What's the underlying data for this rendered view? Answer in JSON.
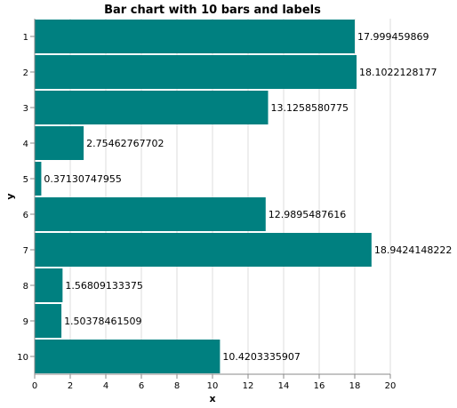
{
  "chart_data": {
    "type": "bar",
    "orientation": "horizontal",
    "title": "Bar chart with 10 bars and labels",
    "xlabel": "x",
    "ylabel": "y",
    "xlim": [
      0,
      20
    ],
    "x_ticks": [
      0,
      2,
      4,
      6,
      8,
      10,
      12,
      14,
      16,
      18,
      20
    ],
    "grid": true,
    "bar_color": "#008080",
    "categories": [
      "1",
      "2",
      "3",
      "4",
      "5",
      "6",
      "7",
      "8",
      "9",
      "10"
    ],
    "values": [
      17.999459869,
      18.1022128177,
      13.1258580775,
      2.75462767702,
      0.37130747955,
      12.9895487616,
      18.9424148222,
      1.56809133375,
      1.50378461509,
      10.4203335907
    ],
    "labels": [
      "17.999459869",
      "18.1022128177",
      "13.1258580775",
      "2.75462767702",
      "0.37130747955",
      "12.9895487616",
      "18.9424148222",
      "1.56809133375",
      "1.50378461509",
      "10.4203335907"
    ]
  }
}
